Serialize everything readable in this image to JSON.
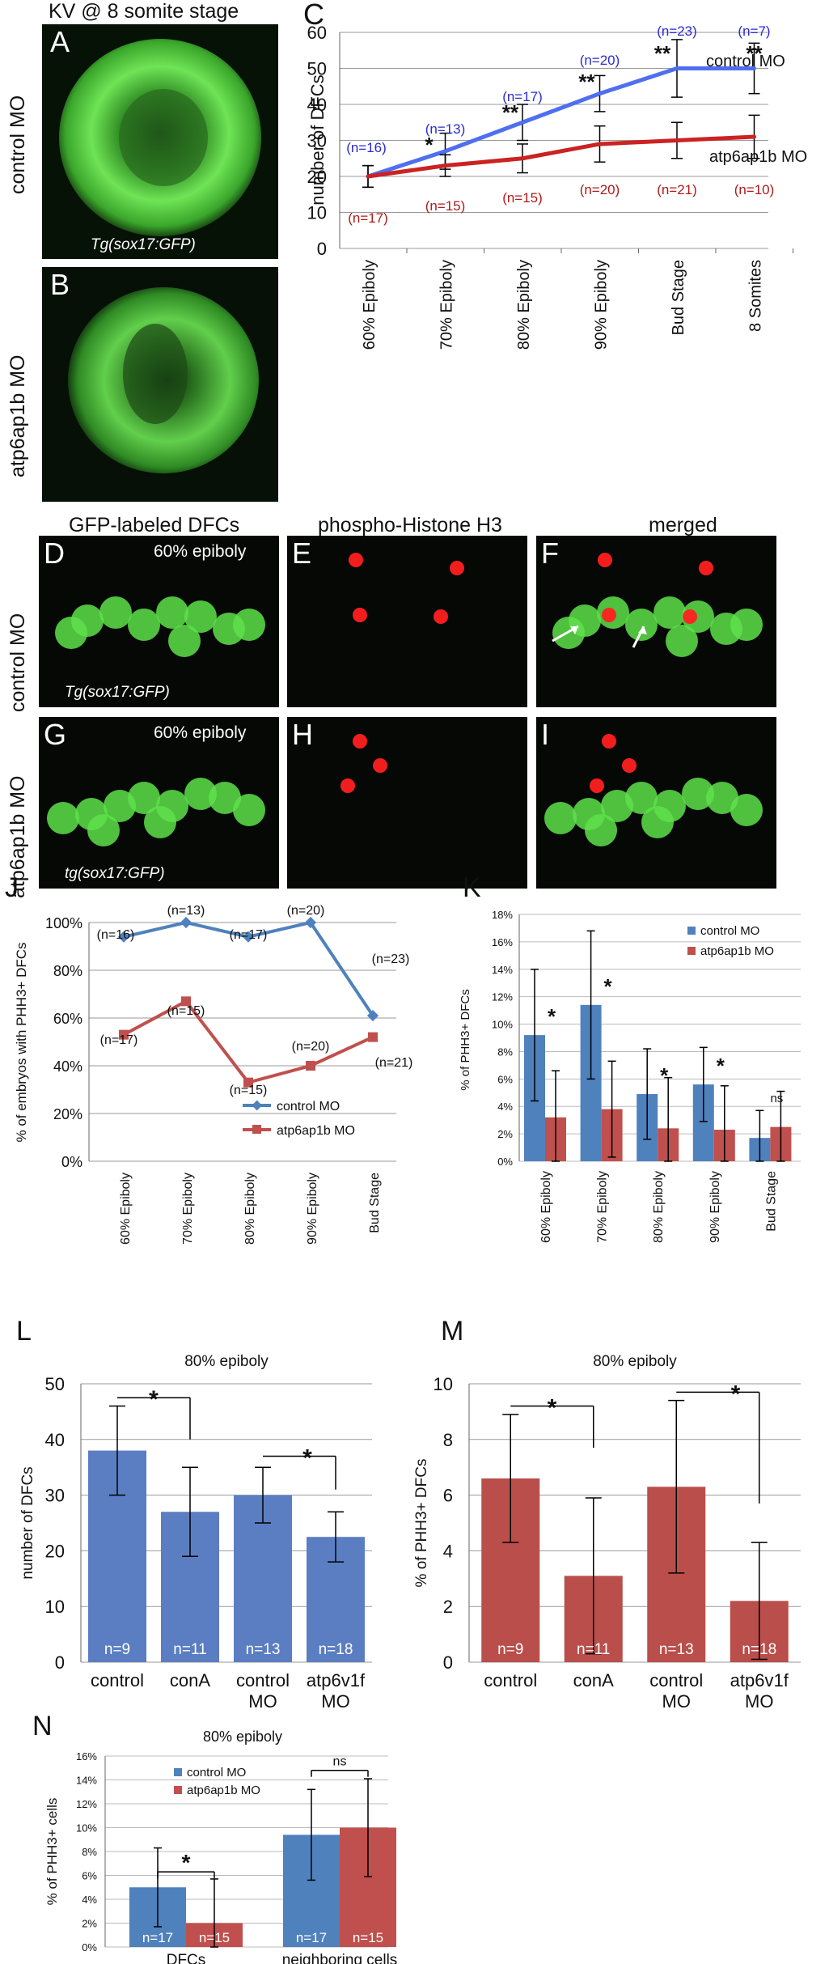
{
  "top": {
    "title": "KV @ 8 somite stage",
    "panel_a": "A",
    "panel_b": "B",
    "panel_c": "C",
    "row_control": "control MO",
    "row_atp": "atp6ap1b MO",
    "transgene": "Tg(sox17:GFP)"
  },
  "mid": {
    "panels": [
      "D",
      "E",
      "F",
      "G",
      "H",
      "I"
    ],
    "col1": "GFP-labeled DFCs",
    "col2": "phospho-Histone H3",
    "col3": "merged",
    "stage1": "60% epiboly",
    "stage2": "60% epiboly",
    "row_control": "control MO",
    "row_atp": "atp6ap1b MO",
    "transgene1": "Tg(sox17:GFP)",
    "transgene2": "tg(sox17:GFP)"
  },
  "colors": {
    "control_line": "#4f6ff0",
    "atp_line": "#cc2222",
    "blue_series": "#4f81bd",
    "red_series": "#c0504d",
    "bar_blue": "#5b7ec2",
    "bar_red": "#b94e4b",
    "green": "#5ee04a",
    "red_signal": "#ff2020"
  },
  "chart_data": [
    {
      "panel": "C",
      "type": "line",
      "ylabel": "number of DFCs",
      "categories": [
        "60% Epiboly",
        "70% Epiboly",
        "80% Epiboly",
        "90% Epiboly",
        "Bud Stage",
        "8 Somites"
      ],
      "ylim": [
        0,
        60
      ],
      "yticks": [
        0,
        10,
        20,
        30,
        40,
        50,
        60
      ],
      "grid": true,
      "series": [
        {
          "name": "control MO",
          "values": [
            20,
            27,
            35,
            43,
            50,
            50
          ],
          "err": [
            3,
            5,
            5,
            5,
            8,
            7
          ],
          "n": [
            "(n=16)",
            "(n=13)",
            "(n=17)",
            "(n=20)",
            "(n=23)",
            "(n=7)"
          ]
        },
        {
          "name": "atp6ap1b MO",
          "values": [
            20,
            23,
            25,
            29,
            30,
            31
          ],
          "err": [
            3,
            3,
            4,
            5,
            5,
            6
          ],
          "n": [
            "(n=17)",
            "(n=15)",
            "(n=15)",
            "(n=20)",
            "(n=21)",
            "(n=10)"
          ]
        }
      ],
      "significance": [
        "",
        "*",
        "**",
        "**",
        "**",
        "**"
      ]
    },
    {
      "panel": "J",
      "type": "line",
      "ylabel": "% of embryos with PHH3+ DFCs",
      "categories": [
        "60% Epiboly",
        "70% Epiboly",
        "80% Epiboly",
        "90% Epiboly",
        "Bud Stage"
      ],
      "ylim": [
        0,
        100
      ],
      "yticks": [
        "0%",
        "20%",
        "40%",
        "60%",
        "80%",
        "100%"
      ],
      "grid": true,
      "legend": "bottom-right",
      "series": [
        {
          "name": "control MO",
          "values": [
            94,
            100,
            94,
            100,
            61
          ],
          "n": [
            "(n=16)",
            "(n=13)",
            "(n=17)",
            "(n=20)",
            "(n=23)"
          ]
        },
        {
          "name": "atp6ap1b MO",
          "values": [
            53,
            67,
            33,
            40,
            52
          ],
          "n": [
            "(n=17)",
            "(n=15)",
            "(n=15)",
            "(n=20)",
            "(n=21)"
          ]
        }
      ]
    },
    {
      "panel": "K",
      "type": "bar",
      "ylabel": "% of PHH3+ DFCs",
      "categories": [
        "60% Epiboly",
        "70% Epiboly",
        "80% Epiboly",
        "90% Epiboly",
        "Bud Stage"
      ],
      "ylim": [
        0,
        18
      ],
      "yticks": [
        "0%",
        "2%",
        "4%",
        "6%",
        "8%",
        "10%",
        "12%",
        "14%",
        "16%",
        "18%"
      ],
      "legend": "top-right",
      "series": [
        {
          "name": "control MO",
          "values": [
            9.2,
            11.4,
            4.9,
            5.6,
            1.7
          ],
          "err": [
            4.8,
            5.4,
            3.3,
            2.7,
            2.0
          ]
        },
        {
          "name": "atp6ap1b MO",
          "values": [
            3.2,
            3.8,
            2.4,
            2.3,
            2.5
          ],
          "err": [
            3.4,
            3.5,
            3.7,
            3.2,
            2.6
          ]
        }
      ],
      "significance": [
        "*",
        "*",
        "*",
        "*",
        "ns"
      ]
    },
    {
      "panel": "L",
      "type": "bar",
      "title": "80% epiboly",
      "ylabel": "number of DFCs",
      "categories": [
        "control",
        "conA",
        "control MO",
        "atp6v1f MO"
      ],
      "ylim": [
        0,
        50
      ],
      "yticks": [
        0,
        10,
        20,
        30,
        40,
        50
      ],
      "values": [
        38,
        27,
        30,
        22.5
      ],
      "err": [
        8,
        8,
        5,
        4.5
      ],
      "n": [
        "n=9",
        "n=11",
        "n=13",
        "n=18"
      ],
      "significance": [
        "*",
        "*"
      ]
    },
    {
      "panel": "M",
      "type": "bar",
      "title": "80% epiboly",
      "ylabel": "% of PHH3+ DFCs",
      "categories": [
        "control",
        "conA",
        "control MO",
        "atp6v1f MO"
      ],
      "ylim": [
        0,
        10
      ],
      "yticks": [
        0,
        2,
        4,
        6,
        8,
        10
      ],
      "values": [
        6.6,
        3.1,
        6.3,
        2.2
      ],
      "err": [
        2.3,
        2.8,
        3.1,
        2.1
      ],
      "n": [
        "n=9",
        "n=11",
        "n=13",
        "n=18"
      ],
      "significance": [
        "*",
        "*"
      ]
    },
    {
      "panel": "N",
      "type": "bar",
      "title": "80% epiboly",
      "ylabel": "% of PHH3+ cells",
      "categories": [
        "DFCs",
        "neighboring cells"
      ],
      "ylim": [
        0,
        16
      ],
      "yticks": [
        "0%",
        "2%",
        "4%",
        "6%",
        "8%",
        "10%",
        "12%",
        "14%",
        "16%"
      ],
      "legend": "top-left",
      "series": [
        {
          "name": "control MO",
          "values": [
            5.0,
            9.4
          ],
          "err": [
            3.3,
            3.8
          ],
          "n": [
            "n=17",
            "n=17"
          ]
        },
        {
          "name": "atp6ap1b MO",
          "values": [
            2.0,
            10.0
          ],
          "err": [
            3.7,
            4.1
          ],
          "n": [
            "n=15",
            "n=15"
          ]
        }
      ],
      "significance": [
        "*",
        "ns"
      ]
    }
  ]
}
